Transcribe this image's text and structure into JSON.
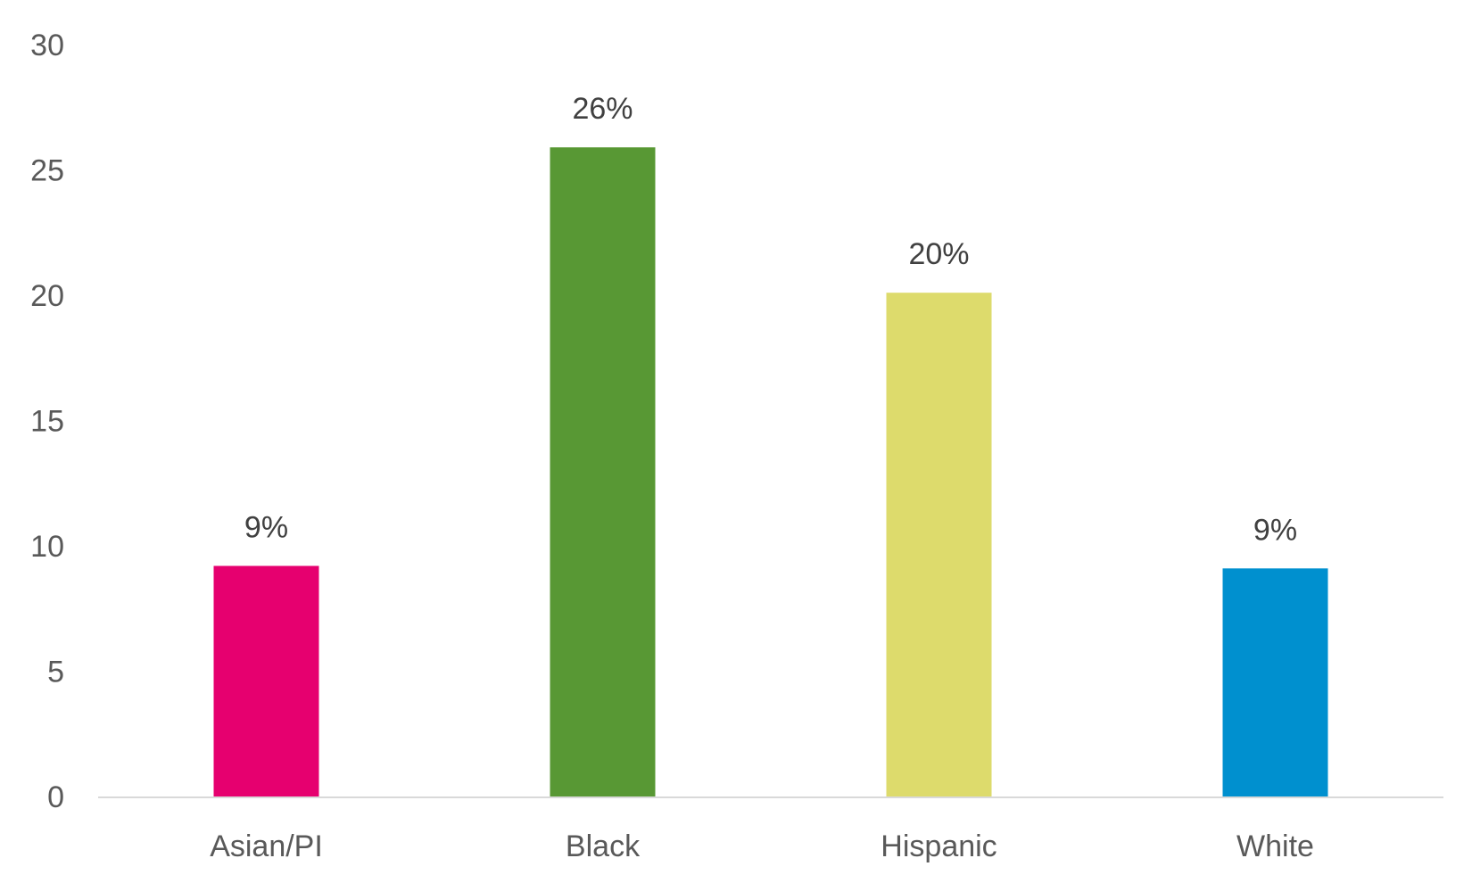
{
  "chart_data": {
    "type": "bar",
    "title": "",
    "xlabel": "",
    "ylabel": "",
    "categories": [
      "Asian/PI",
      "Black",
      "Hispanic",
      "White"
    ],
    "values": [
      9.2,
      25.9,
      20.1,
      9.1
    ],
    "data_labels": [
      "9%",
      "26%",
      "20%",
      "9%"
    ],
    "colors": [
      "#E6006F",
      "#589834",
      "#DDDB6C",
      "#0090CF"
    ],
    "ylim": [
      0,
      30
    ],
    "yticks": [
      0,
      5,
      10,
      15,
      20,
      25,
      30
    ],
    "ytick_labels": [
      "0",
      "5",
      "10",
      "15",
      "20",
      "25",
      "30"
    ],
    "grid": false,
    "legend": "none",
    "axis_color": "#D9D9D9"
  }
}
